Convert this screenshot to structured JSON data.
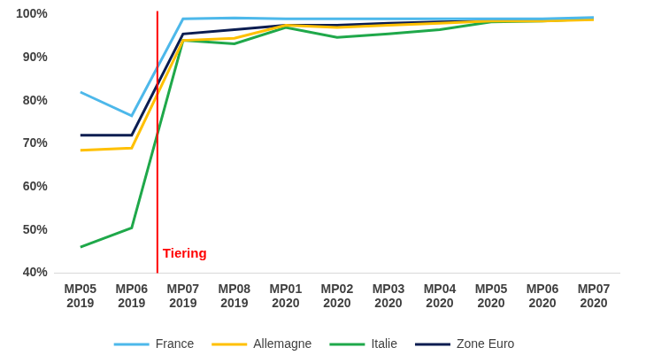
{
  "chart_data": {
    "type": "line",
    "categories": [
      "MP05 2019",
      "MP06 2019",
      "MP07 2019",
      "MP08 2019",
      "MP01 2020",
      "MP02 2020",
      "MP03 2020",
      "MP04 2020",
      "MP05 2020",
      "MP06 2020",
      "MP07 2020"
    ],
    "series": [
      {
        "name": "France",
        "color": "#4db8ea",
        "values": [
          82,
          76.5,
          99,
          99.2,
          99,
          99,
          99,
          99,
          99,
          99,
          99.3
        ]
      },
      {
        "name": "Allemagne",
        "color": "#ffc000",
        "values": [
          68.5,
          69,
          94,
          94.5,
          97.5,
          97,
          97.5,
          98,
          98.5,
          98.5,
          98.8
        ]
      },
      {
        "name": "Italie",
        "color": "#1fa84a",
        "values": [
          46,
          50.5,
          94,
          93.2,
          97,
          94.7,
          95.5,
          96.5,
          98.3,
          98.5,
          99
        ]
      },
      {
        "name": "Zone Euro",
        "color": "#0b1d51",
        "values": [
          72,
          72,
          95.5,
          96.5,
          97.5,
          97.5,
          98,
          98.3,
          98.5,
          98.7,
          99
        ]
      }
    ],
    "ylim": [
      40,
      100
    ],
    "yticks": [
      {
        "value": 40,
        "label": "40%"
      },
      {
        "value": 50,
        "label": "50%"
      },
      {
        "value": 60,
        "label": "60%"
      },
      {
        "value": 70,
        "label": "70%"
      },
      {
        "value": 80,
        "label": "80%"
      },
      {
        "value": 90,
        "label": "90%"
      },
      {
        "value": 100,
        "label": "100%"
      }
    ],
    "grid": false,
    "legend": "bottom",
    "annotations": [
      {
        "text": "Tiering",
        "x": 1.5,
        "color": "#ff0000"
      }
    ]
  }
}
